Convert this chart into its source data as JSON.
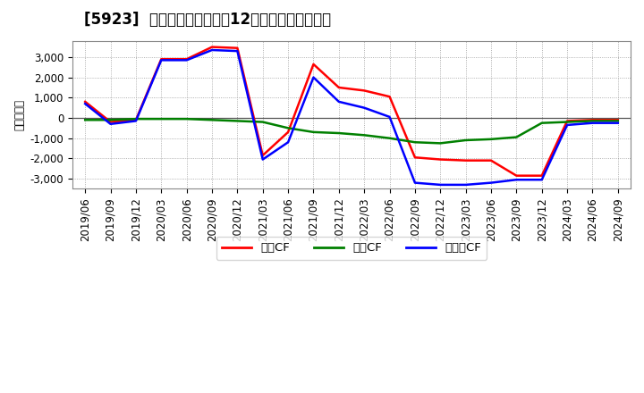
{
  "title": "[5923]  キャッシュフローの12か月移動合計の推移",
  "ylabel": "（百万円）",
  "background_color": "#ffffff",
  "plot_bg_color": "#ffffff",
  "grid_color": "#aaaaaa",
  "ylim": [
    -3500,
    3800
  ],
  "yticks": [
    -3000,
    -2000,
    -1000,
    0,
    1000,
    2000,
    3000
  ],
  "xtick_labels": [
    "2019/06",
    "2019/09",
    "2019/12",
    "2020/03",
    "2020/06",
    "2020/09",
    "2020/12",
    "2021/03",
    "2021/06",
    "2021/09",
    "2021/12",
    "2022/03",
    "2022/06",
    "2022/09",
    "2022/12",
    "2023/03",
    "2023/06",
    "2023/09",
    "2023/12",
    "2024/03",
    "2024/06",
    "2024/09"
  ],
  "series": {
    "営業CF": {
      "color": "#ff0000",
      "linewidth": 1.8,
      "data": {
        "2019/06": 800,
        "2019/09": -200,
        "2019/12": -100,
        "2020/03": 2900,
        "2020/06": 2900,
        "2020/09": 3500,
        "2020/12": 3450,
        "2021/03": -1850,
        "2021/06": -700,
        "2021/09": 2650,
        "2021/12": 1500,
        "2022/03": 1350,
        "2022/06": 1050,
        "2022/09": -1950,
        "2022/12": -2050,
        "2023/03": -2100,
        "2023/06": -2100,
        "2023/09": -2850,
        "2023/12": -2850,
        "2024/03": -150,
        "2024/06": -100,
        "2024/09": -100
      }
    },
    "投資CF": {
      "color": "#008000",
      "linewidth": 1.8,
      "data": {
        "2019/06": -100,
        "2019/09": -100,
        "2019/12": -50,
        "2020/03": -50,
        "2020/06": -50,
        "2020/09": -100,
        "2020/12": -150,
        "2021/03": -200,
        "2021/06": -500,
        "2021/09": -700,
        "2021/12": -750,
        "2022/03": -850,
        "2022/06": -1000,
        "2022/09": -1200,
        "2022/12": -1250,
        "2023/03": -1100,
        "2023/06": -1050,
        "2023/09": -950,
        "2023/12": -250,
        "2024/03": -200,
        "2024/06": -150,
        "2024/09": -150
      }
    },
    "フリーCF": {
      "color": "#0000ff",
      "linewidth": 1.8,
      "data": {
        "2019/06": 700,
        "2019/09": -300,
        "2019/12": -150,
        "2020/03": 2850,
        "2020/06": 2850,
        "2020/09": 3350,
        "2020/12": 3300,
        "2021/03": -2050,
        "2021/06": -1200,
        "2021/09": 2000,
        "2021/12": 800,
        "2022/03": 500,
        "2022/06": 50,
        "2022/09": -3200,
        "2022/12": -3300,
        "2023/03": -3300,
        "2023/06": -3200,
        "2023/09": -3050,
        "2023/12": -3050,
        "2024/03": -350,
        "2024/06": -250,
        "2024/09": -250
      }
    }
  },
  "legend_entries": [
    "営業CF",
    "投資CF",
    "フリーCF"
  ],
  "legend_colors": [
    "#ff0000",
    "#008000",
    "#0000ff"
  ],
  "title_fontsize": 12,
  "axis_fontsize": 8.5,
  "legend_fontsize": 9.5
}
